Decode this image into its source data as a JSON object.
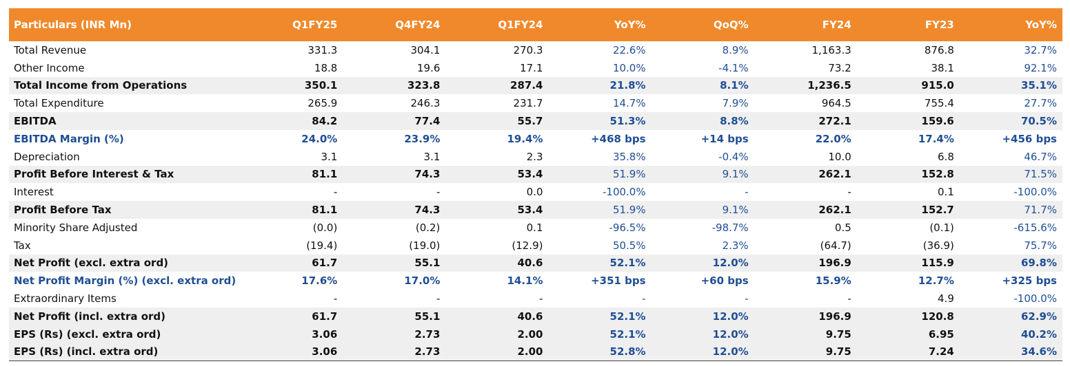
{
  "table": {
    "headers": [
      "Particulars (INR Mn)",
      "Q1FY25",
      "Q4FY24",
      "Q1FY24",
      "YoY%",
      "QoQ%",
      "FY24",
      "FY23",
      "YoY%"
    ],
    "rows": [
      {
        "label": "Total Revenue",
        "values": [
          "331.3",
          "304.1",
          "270.3",
          "22.6%",
          "8.9%",
          "1,163.3",
          "876.8",
          "32.7%"
        ]
      },
      {
        "label": "Other Income",
        "values": [
          "18.8",
          "19.6",
          "17.1",
          "10.0%",
          "-4.1%",
          "73.2",
          "38.1",
          "92.1%"
        ]
      },
      {
        "label": "Total Income from Operations",
        "values": [
          "350.1",
          "323.8",
          "287.4",
          "21.8%",
          "8.1%",
          "1,236.5",
          "915.0",
          "35.1%"
        ]
      },
      {
        "label": "Total Expenditure",
        "values": [
          "265.9",
          "246.3",
          "231.7",
          "14.7%",
          "7.9%",
          "964.5",
          "755.4",
          "27.7%"
        ]
      },
      {
        "label": "EBITDA",
        "values": [
          "84.2",
          "77.4",
          "55.7",
          "51.3%",
          "8.8%",
          "272.1",
          "159.6",
          "70.5%"
        ]
      },
      {
        "label": "EBITDA Margin (%)",
        "values": [
          "24.0%",
          "23.9%",
          "19.4%",
          "+468 bps",
          "+14 bps",
          "22.0%",
          "17.4%",
          "+456 bps"
        ]
      },
      {
        "label": "Depreciation",
        "values": [
          "3.1",
          "3.1",
          "2.3",
          "35.8%",
          "-0.4%",
          "10.0",
          "6.8",
          "46.7%"
        ]
      },
      {
        "label": "Profit Before Interest & Tax",
        "values": [
          "81.1",
          "74.3",
          "53.4",
          "51.9%",
          "9.1%",
          "262.1",
          "152.8",
          "71.5%"
        ]
      },
      {
        "label": "Interest",
        "values": [
          "-",
          "-",
          "0.0",
          "-100.0%",
          "-",
          "-",
          "0.1",
          "-100.0%"
        ]
      },
      {
        "label": "Profit Before Tax",
        "values": [
          "81.1",
          "74.3",
          "53.4",
          "51.9%",
          "9.1%",
          "262.1",
          "152.7",
          "71.7%"
        ]
      },
      {
        "label": "Minority Share Adjusted",
        "values": [
          "(0.0)",
          "(0.2)",
          "0.1",
          "-96.5%",
          "-98.7%",
          "0.5",
          "(0.1)",
          "-615.6%"
        ]
      },
      {
        "label": "Tax",
        "values": [
          "(19.4)",
          "(19.0)",
          "(12.9)",
          "50.5%",
          "2.3%",
          "(64.7)",
          "(36.9)",
          "75.7%"
        ]
      },
      {
        "label": "Net Profit (excl. extra ord)",
        "values": [
          "61.7",
          "55.1",
          "40.6",
          "52.1%",
          "12.0%",
          "196.9",
          "115.9",
          "69.8%"
        ]
      },
      {
        "label": "Net Profit Margin (%) (excl. extra ord)",
        "values": [
          "17.6%",
          "17.0%",
          "14.1%",
          "+351 bps",
          "+60 bps",
          "15.9%",
          "12.7%",
          "+325 bps"
        ]
      },
      {
        "label": "Extraordinary Items",
        "values": [
          "-",
          "-",
          "-",
          "-",
          "-",
          "-",
          "4.9",
          "-100.0%"
        ]
      },
      {
        "label": "Net Profit (incl. extra ord)",
        "values": [
          "61.7",
          "55.1",
          "40.6",
          "52.1%",
          "12.0%",
          "196.9",
          "120.8",
          "62.9%"
        ]
      },
      {
        "label": "EPS (Rs) (excl. extra ord)",
        "values": [
          "3.06",
          "2.73",
          "2.00",
          "52.1%",
          "12.0%",
          "9.75",
          "6.95",
          "40.2%"
        ]
      },
      {
        "label": "EPS (Rs) (incl. extra ord)",
        "values": [
          "3.06",
          "2.73",
          "2.00",
          "52.8%",
          "12.0%",
          "9.75",
          "7.24",
          "34.6%"
        ]
      }
    ]
  },
  "colors": {
    "header_bg": "#f0892b",
    "header_text": "#ffffff",
    "shade_row": "#efefef",
    "accent_blue": "#1f4e94",
    "body_text": "#111111"
  }
}
